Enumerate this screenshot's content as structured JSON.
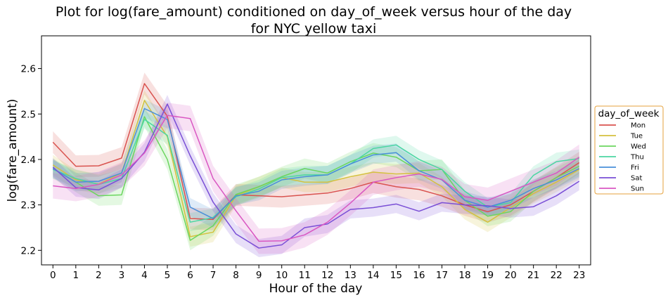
{
  "chart_data": {
    "type": "line",
    "title_line1": "Plot for log(fare_amount) conditioned on day_of_week versus hour of the day",
    "title_line2": "for NYC yellow taxi",
    "xlabel": "Hour of the day",
    "ylabel": "log(fare_amount)",
    "x": [
      0,
      1,
      2,
      3,
      4,
      5,
      6,
      7,
      8,
      9,
      10,
      11,
      12,
      13,
      14,
      15,
      16,
      17,
      18,
      19,
      20,
      21,
      22,
      23
    ],
    "x_ticks": [
      "0",
      "1",
      "2",
      "3",
      "4",
      "5",
      "6",
      "7",
      "8",
      "9",
      "10",
      "11",
      "12",
      "13",
      "14",
      "15",
      "16",
      "17",
      "18",
      "19",
      "20",
      "21",
      "22",
      "23"
    ],
    "xlim": [
      -0.5,
      23.5
    ],
    "ylim": [
      2.168,
      2.672
    ],
    "y_ticks": [
      2.2,
      2.3,
      2.4,
      2.5,
      2.6
    ],
    "y_tick_labels": [
      "2.2",
      "2.3",
      "2.4",
      "2.5",
      "2.6"
    ],
    "grid": false,
    "legend": {
      "title": "day_of_week",
      "placement": "outside-right",
      "border_color": "#e6a23c"
    },
    "series": [
      {
        "name": "Mon",
        "color": "#d9534f",
        "ci": 0.024,
        "values": [
          2.438,
          2.385,
          2.386,
          2.403,
          2.567,
          2.495,
          2.27,
          2.268,
          2.322,
          2.32,
          2.318,
          2.322,
          2.326,
          2.336,
          2.35,
          2.34,
          2.334,
          2.32,
          2.3,
          2.285,
          2.3,
          2.33,
          2.36,
          2.393
        ]
      },
      {
        "name": "Tue",
        "color": "#d4c13f",
        "ci": 0.022,
        "values": [
          2.388,
          2.355,
          2.346,
          2.37,
          2.53,
          2.45,
          2.23,
          2.24,
          2.32,
          2.34,
          2.36,
          2.35,
          2.35,
          2.362,
          2.372,
          2.368,
          2.37,
          2.34,
          2.29,
          2.262,
          2.294,
          2.325,
          2.35,
          2.378
        ]
      },
      {
        "name": "Wed",
        "color": "#6bd65f",
        "ci": 0.022,
        "values": [
          2.38,
          2.35,
          2.32,
          2.322,
          2.494,
          2.4,
          2.222,
          2.254,
          2.323,
          2.34,
          2.362,
          2.38,
          2.37,
          2.395,
          2.414,
          2.405,
          2.375,
          2.378,
          2.31,
          2.275,
          2.285,
          2.33,
          2.36,
          2.385
        ]
      },
      {
        "name": "Thu",
        "color": "#4cd6a2",
        "ci": 0.02,
        "values": [
          2.378,
          2.358,
          2.345,
          2.358,
          2.488,
          2.453,
          2.262,
          2.272,
          2.318,
          2.335,
          2.36,
          2.366,
          2.366,
          2.39,
          2.424,
          2.432,
          2.4,
          2.378,
          2.33,
          2.295,
          2.305,
          2.365,
          2.395,
          2.402
        ]
      },
      {
        "name": "Fri",
        "color": "#4a8fd9",
        "ci": 0.02,
        "values": [
          2.38,
          2.35,
          2.352,
          2.37,
          2.512,
          2.488,
          2.295,
          2.27,
          2.32,
          2.33,
          2.355,
          2.362,
          2.366,
          2.39,
          2.41,
          2.415,
          2.375,
          2.355,
          2.31,
          2.295,
          2.31,
          2.336,
          2.355,
          2.38
        ]
      },
      {
        "name": "Sat",
        "color": "#7a4fd6",
        "ci": 0.02,
        "values": [
          2.383,
          2.338,
          2.333,
          2.358,
          2.416,
          2.522,
          2.408,
          2.306,
          2.236,
          2.205,
          2.212,
          2.25,
          2.258,
          2.29,
          2.294,
          2.302,
          2.286,
          2.305,
          2.3,
          2.298,
          2.292,
          2.296,
          2.32,
          2.352
        ]
      },
      {
        "name": "Sun",
        "color": "#d957c2",
        "ci": 0.028,
        "values": [
          2.342,
          2.336,
          2.345,
          2.366,
          2.414,
          2.497,
          2.49,
          2.358,
          2.287,
          2.22,
          2.221,
          2.234,
          2.262,
          2.304,
          2.35,
          2.36,
          2.368,
          2.356,
          2.318,
          2.31,
          2.33,
          2.35,
          2.37,
          2.405
        ]
      }
    ]
  }
}
